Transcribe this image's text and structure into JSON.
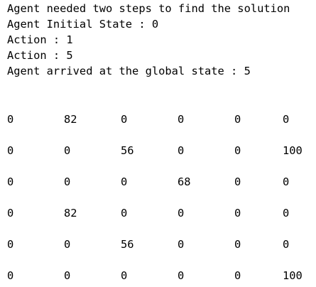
{
  "console": {
    "lines": [
      "Agent needed two steps to find the solution",
      "Agent Initial State : 0",
      "Action : 1",
      "Action : 5",
      "Agent arrived at the global state : 5"
    ]
  },
  "matrix": {
    "rows": [
      [
        "0",
        "82",
        "0",
        "0",
        "0",
        "0"
      ],
      [
        "0",
        "0",
        "56",
        "0",
        "0",
        "100"
      ],
      [
        "0",
        "0",
        "0",
        "68",
        "0",
        "0"
      ],
      [
        "0",
        "82",
        "0",
        "0",
        "0",
        "0"
      ],
      [
        "0",
        "0",
        "56",
        "0",
        "0",
        "0"
      ],
      [
        "0",
        "0",
        "0",
        "0",
        "0",
        "100"
      ]
    ]
  }
}
